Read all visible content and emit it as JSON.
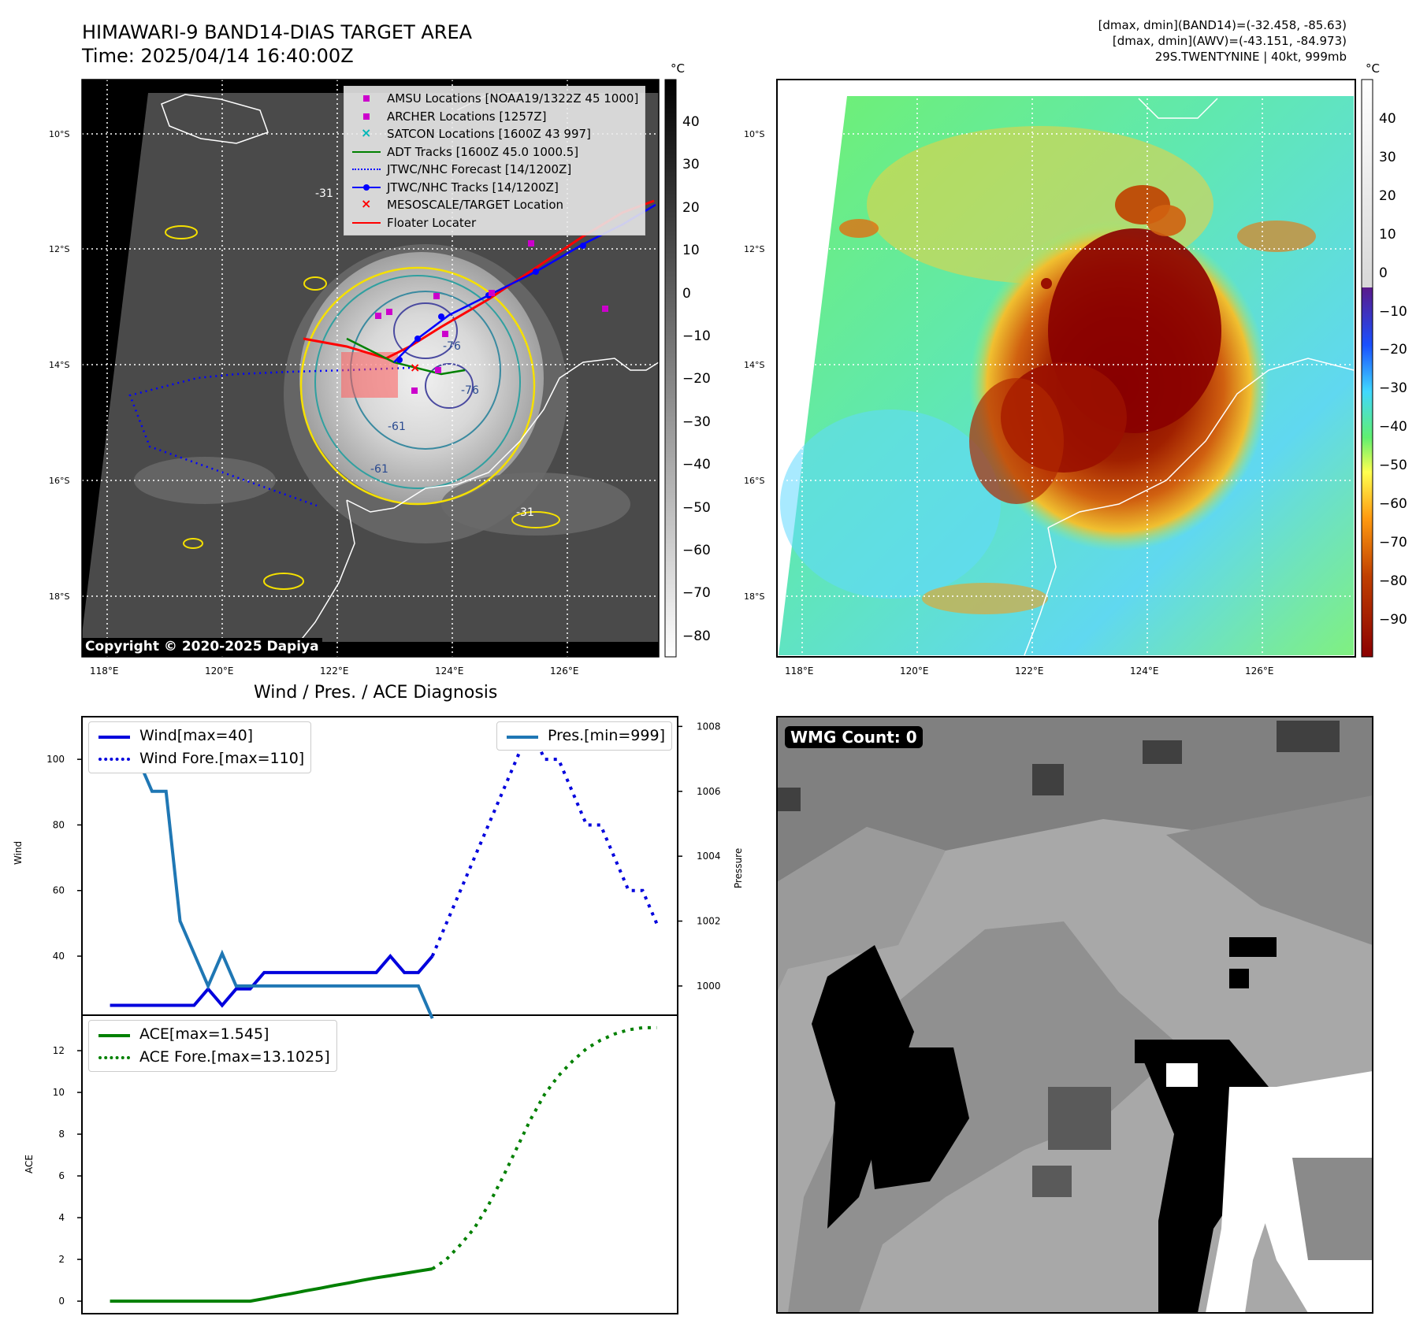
{
  "header": {
    "title_line1": "HIMAWARI-9 BAND14-DIAS TARGET AREA",
    "title_line2": "Time: 2025/04/14 16:40:00Z",
    "info_line1": "[dmax, dmin](BAND14)=(-32.458, -85.63)",
    "info_line2": "[dmax, dmin](AWV)=(-43.151, -84.973)",
    "info_line3": "29S.TWENTYNINE | 40kt, 999mb"
  },
  "maps": {
    "lat_labels": [
      "10°S",
      "12°S",
      "14°S",
      "16°S",
      "18°S"
    ],
    "lon_labels": [
      "118°E",
      "120°E",
      "122°E",
      "124°E",
      "126°E"
    ],
    "copyright": "Copyright © 2020-2025 Dapiya",
    "left_colorbar": {
      "unit": "°C",
      "ticks": [
        "40",
        "30",
        "20",
        "10",
        "0",
        "−10",
        "−20",
        "−30",
        "−40",
        "−50",
        "−60",
        "−70",
        "−80"
      ]
    },
    "right_colorbar": {
      "unit": "°C",
      "ticks": [
        "40",
        "30",
        "20",
        "10",
        "0",
        "−10",
        "−20",
        "−30",
        "−40",
        "−50",
        "−60",
        "−70",
        "−80",
        "−90"
      ]
    },
    "legend": [
      {
        "label": "AMSU Locations [NOAA19/1322Z 45 1000]",
        "symbol": "square",
        "color": "#cc00cc"
      },
      {
        "label": "ARCHER Locations [1257Z]",
        "symbol": "square",
        "color": "#cc00cc"
      },
      {
        "label": "SATCON Locations [1600Z 43 997]",
        "symbol": "x",
        "color": "#00b7b7"
      },
      {
        "label": "ADT Tracks [1600Z 45.0 1000.5]",
        "symbol": "line",
        "color": "#008000"
      },
      {
        "label": "JTWC/NHC Forecast [14/1200Z]",
        "symbol": "dotted",
        "color": "#0000ff"
      },
      {
        "label": "JTWC/NHC Tracks [14/1200Z]",
        "symbol": "line-dot",
        "color": "#0000ff"
      },
      {
        "label": "MESOSCALE/TARGET Location",
        "symbol": "x",
        "color": "#ff0000"
      },
      {
        "label": "Floater Locater",
        "symbol": "line",
        "color": "#ff0000"
      }
    ],
    "contour_labels": [
      "-31",
      "-31",
      "-61",
      "-61",
      "-76",
      "-76"
    ],
    "wmg_count": "WMG Count: 0"
  },
  "chart_data": [
    {
      "type": "line",
      "title": "Wind / Pres. / ACE Diagnosis",
      "ylabel": "Wind",
      "y2label": "Pressure",
      "ylim": [
        22,
        113
      ],
      "y2lim": [
        999.1,
        1008.3
      ],
      "yticks": [
        "40",
        "60",
        "80",
        "100"
      ],
      "y2ticks": [
        "1000",
        "1002",
        "1004",
        "1006",
        "1008"
      ],
      "series": [
        {
          "name": "Wind[max=40]",
          "style": "solid",
          "color": "#0000dd",
          "axis": "left",
          "x": [
            0,
            1,
            2,
            3,
            4,
            5,
            6,
            7,
            8,
            9,
            10,
            11,
            12,
            13,
            14,
            15,
            16,
            17,
            18,
            19,
            20,
            21,
            22,
            23
          ],
          "values": [
            25,
            25,
            25,
            25,
            25,
            25,
            25,
            30,
            25,
            30,
            30,
            35,
            35,
            35,
            35,
            35,
            35,
            35,
            35,
            35,
            40,
            35,
            35,
            40
          ]
        },
        {
          "name": "Wind Fore.[max=110]",
          "style": "dotted",
          "color": "#0000dd",
          "axis": "left",
          "x": [
            23,
            24,
            25,
            26,
            27,
            28,
            29,
            30,
            31,
            32,
            33,
            34,
            35,
            36,
            37,
            38,
            39
          ],
          "values": [
            40,
            50,
            60,
            70,
            80,
            90,
            100,
            110,
            100,
            100,
            90,
            80,
            80,
            70,
            60,
            60,
            50
          ]
        },
        {
          "name": "Pres.[min=999]",
          "style": "solid",
          "color": "#1f77b4",
          "axis": "right",
          "x": [
            0,
            1,
            2,
            3,
            4,
            5,
            6,
            7,
            8,
            9,
            10,
            11,
            12,
            13,
            14,
            15,
            16,
            17,
            18,
            19,
            20,
            21,
            22,
            23
          ],
          "values": [
            1008,
            1007,
            1007,
            1006,
            1006,
            1002,
            1001,
            1000,
            1001,
            1000,
            1000,
            1000,
            1000,
            1000,
            1000,
            1000,
            1000,
            1000,
            1000,
            1000,
            1000,
            1000,
            1000,
            999
          ]
        }
      ]
    },
    {
      "type": "line",
      "ylabel": "ACE",
      "ylim": [
        -0.6,
        13.7
      ],
      "yticks": [
        "0",
        "2",
        "4",
        "6",
        "8",
        "10",
        "12"
      ],
      "series": [
        {
          "name": "ACE[max=1.545]",
          "style": "solid",
          "color": "#008000",
          "x": [
            0,
            10,
            11,
            12,
            13,
            14,
            15,
            16,
            17,
            18,
            19,
            20,
            21,
            22,
            23
          ],
          "values": [
            0,
            0,
            0.12,
            0.25,
            0.37,
            0.5,
            0.62,
            0.75,
            0.87,
            1.0,
            1.12,
            1.22,
            1.33,
            1.44,
            1.545
          ]
        },
        {
          "name": "ACE Fore.[max=13.1025]",
          "style": "dotted",
          "color": "#008000",
          "x": [
            23,
            24,
            25,
            26,
            27,
            28,
            29,
            30,
            31,
            32,
            33,
            34,
            35,
            36,
            37,
            38,
            39
          ],
          "values": [
            1.545,
            2.0,
            2.7,
            3.5,
            4.6,
            5.9,
            7.3,
            8.7,
            9.9,
            10.8,
            11.5,
            12.1,
            12.5,
            12.8,
            13.0,
            13.1,
            13.1025
          ]
        }
      ]
    }
  ]
}
